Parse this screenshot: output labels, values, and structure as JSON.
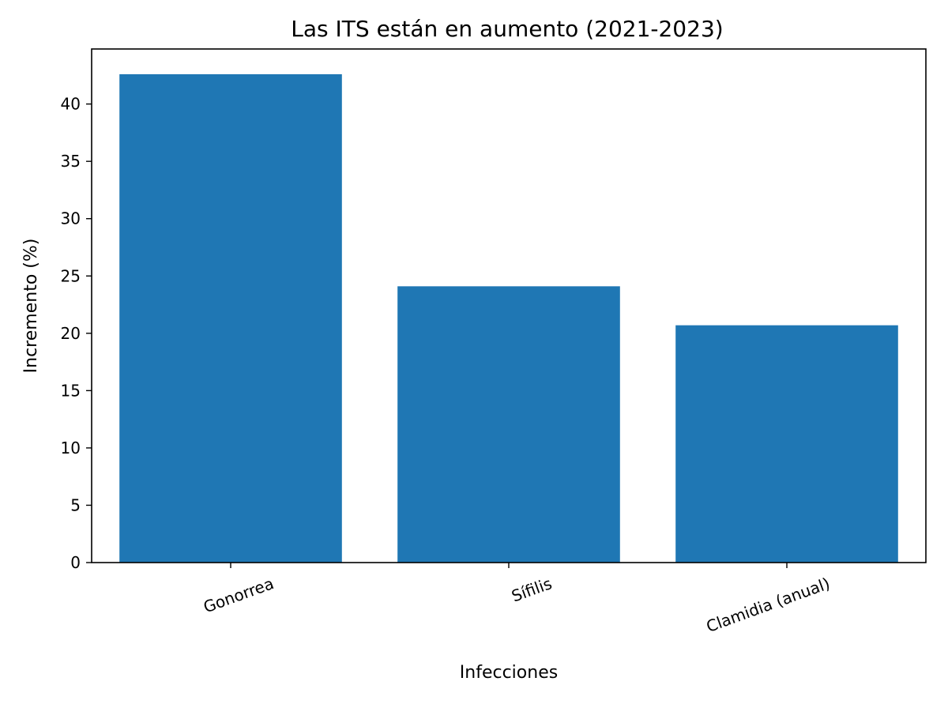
{
  "chart_data": {
    "type": "bar",
    "title": "Las ITS están en aumento (2021-2023)",
    "xlabel": "Infecciones",
    "ylabel": "Incremento (%)",
    "categories": [
      "Gonorrea",
      "Sífilis",
      "Clamidia (anual)"
    ],
    "values": [
      42.6,
      24.1,
      20.7
    ],
    "ylim": [
      0,
      44.8
    ],
    "yticks": [
      0,
      5,
      10,
      15,
      20,
      25,
      30,
      35,
      40
    ],
    "ytick_labels": [
      "0",
      "5",
      "10",
      "15",
      "20",
      "25",
      "30",
      "35",
      "40"
    ],
    "bar_color": "#1f77b4",
    "grid": false,
    "xtick_rotation_deg": 20
  }
}
